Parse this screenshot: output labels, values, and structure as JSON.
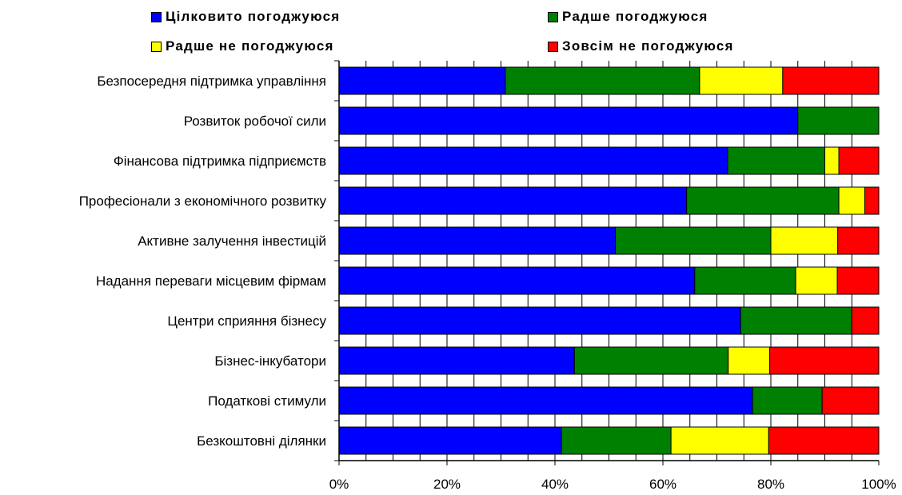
{
  "chart_data": {
    "type": "bar",
    "orientation": "horizontal",
    "stacked": "percent",
    "title": "",
    "xlabel": "",
    "ylabel": "",
    "xlim": [
      0,
      100
    ],
    "x_ticks": [
      "0%",
      "20%",
      "40%",
      "60%",
      "80%",
      "100%"
    ],
    "grid": "vertical gridlines every 5%",
    "legend_position": "top",
    "categories": [
      "Безпосередня підтримка управління",
      "Розвиток робочої сили",
      "Фінансова підтримка підприємств",
      "Професіонали з економічного розвитку",
      "Активне залучення інвестицій",
      "Надання переваги місцевим фірмам",
      "Центри сприяння бізнесу",
      "Бізнес-інкубатори",
      "Податкові стимули",
      "Безкоштовні ділянки"
    ],
    "series": [
      {
        "name": "Цілковито погоджуюся",
        "color": "#0000FF",
        "values": [
          30.8,
          85.0,
          72.0,
          64.4,
          51.2,
          65.9,
          74.4,
          43.6,
          76.6,
          41.2
        ]
      },
      {
        "name": "Радше погоджуюся",
        "color": "#008000",
        "values": [
          36.0,
          15.0,
          18.0,
          28.2,
          28.8,
          18.7,
          20.6,
          28.5,
          12.9,
          20.3
        ]
      },
      {
        "name": "Радше не погоджуюся",
        "color": "#FFFF00",
        "values": [
          15.4,
          0,
          2.6,
          4.8,
          12.4,
          7.7,
          0,
          7.7,
          0,
          18.1
        ]
      },
      {
        "name": "Зовсім не погоджуюся",
        "color": "#FF0000",
        "values": [
          17.8,
          0,
          7.4,
          2.6,
          7.6,
          7.7,
          5.0,
          20.2,
          10.5,
          20.4
        ]
      }
    ]
  }
}
